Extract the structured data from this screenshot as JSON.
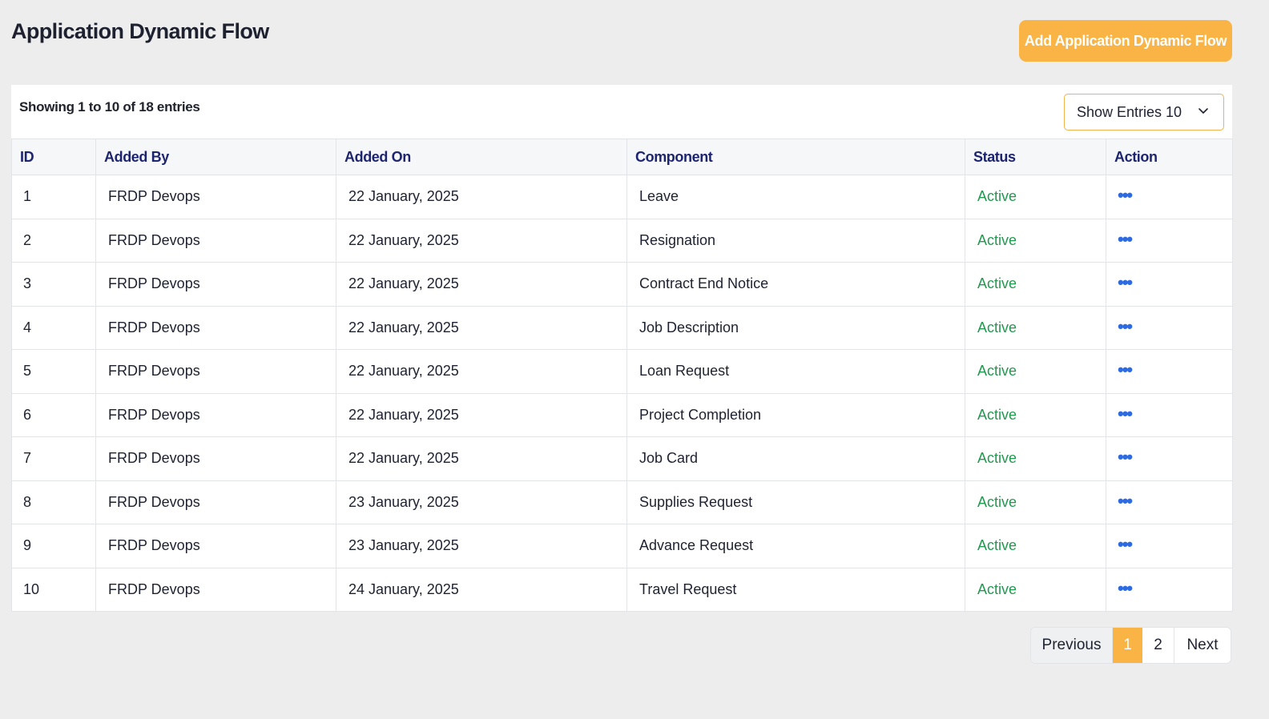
{
  "header": {
    "title": "Application Dynamic Flow",
    "add_button_label": "Add Application Dynamic Flow"
  },
  "toolbar": {
    "showing_text": "Showing 1 to 10 of 18 entries",
    "show_entries_label": "Show Entries 10"
  },
  "table": {
    "columns": [
      "ID",
      "Added By",
      "Added On",
      "Component",
      "Status",
      "Action"
    ],
    "rows": [
      {
        "id": "1",
        "added_by": "FRDP Devops",
        "added_on": "22 January, 2025",
        "component": "Leave",
        "status": "Active",
        "action": "•••"
      },
      {
        "id": "2",
        "added_by": "FRDP Devops",
        "added_on": "22 January, 2025",
        "component": "Resignation",
        "status": "Active",
        "action": "•••"
      },
      {
        "id": "3",
        "added_by": "FRDP Devops",
        "added_on": "22 January, 2025",
        "component": "Contract End Notice",
        "status": "Active",
        "action": "•••"
      },
      {
        "id": "4",
        "added_by": "FRDP Devops",
        "added_on": "22 January, 2025",
        "component": "Job Description",
        "status": "Active",
        "action": "•••"
      },
      {
        "id": "5",
        "added_by": "FRDP Devops",
        "added_on": "22 January, 2025",
        "component": "Loan Request",
        "status": "Active",
        "action": "•••"
      },
      {
        "id": "6",
        "added_by": "FRDP Devops",
        "added_on": "22 January, 2025",
        "component": "Project Completion",
        "status": "Active",
        "action": "•••"
      },
      {
        "id": "7",
        "added_by": "FRDP Devops",
        "added_on": "22 January, 2025",
        "component": "Job Card",
        "status": "Active",
        "action": "•••"
      },
      {
        "id": "8",
        "added_by": "FRDP Devops",
        "added_on": "23 January, 2025",
        "component": "Supplies Request",
        "status": "Active",
        "action": "•••"
      },
      {
        "id": "9",
        "added_by": "FRDP Devops",
        "added_on": "23 January, 2025",
        "component": "Advance Request",
        "status": "Active",
        "action": "•••"
      },
      {
        "id": "10",
        "added_by": "FRDP Devops",
        "added_on": "24 January, 2025",
        "component": "Travel Request",
        "status": "Active",
        "action": "•••"
      }
    ]
  },
  "pagination": {
    "previous_label": "Previous",
    "pages": [
      "1",
      "2"
    ],
    "current_page": "1",
    "next_label": "Next"
  },
  "icons": {
    "dropdown": "chevron-down-icon",
    "row_action": "more-horizontal-icon"
  },
  "colors": {
    "accent": "#f9b445",
    "status_active": "#1f9a4e",
    "action_icon": "#2f6be0",
    "header_text": "#1d2470"
  }
}
